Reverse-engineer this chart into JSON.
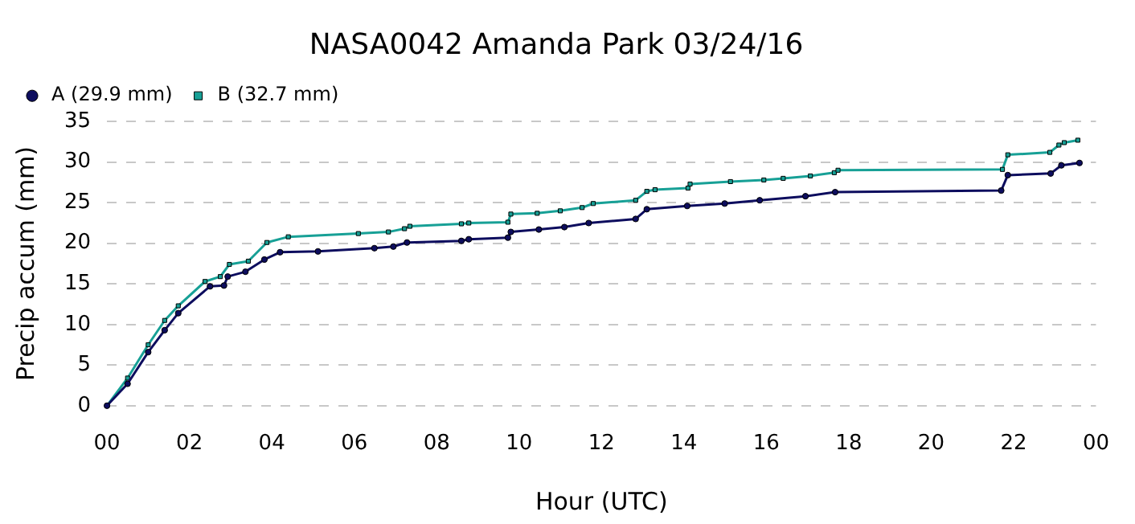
{
  "chart_data": {
    "type": "line",
    "title": "NASA0042 Amanda Park 03/24/16",
    "xlabel": "Hour (UTC)",
    "ylabel": "Precip accum (mm)",
    "xlim": [
      0,
      24
    ],
    "xticks": [
      {
        "value": 0,
        "label": "00"
      },
      {
        "value": 2,
        "label": "02"
      },
      {
        "value": 4,
        "label": "04"
      },
      {
        "value": 6,
        "label": "06"
      },
      {
        "value": 8,
        "label": "08"
      },
      {
        "value": 10,
        "label": "10"
      },
      {
        "value": 12,
        "label": "12"
      },
      {
        "value": 14,
        "label": "14"
      },
      {
        "value": 16,
        "label": "16"
      },
      {
        "value": 18,
        "label": "18"
      },
      {
        "value": 20,
        "label": "20"
      },
      {
        "value": 22,
        "label": "22"
      },
      {
        "value": 24,
        "label": "00"
      }
    ],
    "ylim": [
      0,
      35
    ],
    "yticks": [
      0,
      5,
      10,
      15,
      20,
      25,
      30,
      35
    ],
    "grid": "y",
    "legend": "top left",
    "marker": "circle",
    "line_style": "solid",
    "series": [
      {
        "name": "A (29.9 mm)",
        "color": "#0d0d5e",
        "x": [
          0,
          0.5,
          1,
          1.4,
          1.73,
          2.5,
          2.84,
          2.93,
          3.36,
          3.82,
          4.2,
          5.12,
          6.49,
          6.95,
          7.28,
          8.6,
          8.78,
          9.73,
          9.8,
          10.48,
          11.1,
          11.69,
          12.83,
          13.1,
          14.08,
          14.99,
          15.84,
          16.95,
          17.67,
          21.7,
          21.86,
          22.9,
          23.16,
          23.6
        ],
        "values": [
          0,
          2.7,
          6.6,
          9.3,
          11.4,
          14.7,
          14.8,
          15.9,
          16.5,
          18.0,
          18.9,
          19.0,
          19.4,
          19.6,
          20.1,
          20.3,
          20.5,
          20.7,
          21.4,
          21.7,
          22.0,
          22.5,
          23.0,
          24.2,
          24.6,
          24.9,
          25.3,
          25.8,
          26.3,
          26.5,
          28.4,
          28.6,
          29.6,
          29.9
        ]
      },
      {
        "name": "B (32.7 mm)",
        "color": "#17a096",
        "marker": "square",
        "x": [
          0,
          0.5,
          1,
          1.4,
          1.73,
          2.38,
          2.75,
          2.97,
          3.43,
          3.88,
          4.4,
          6.1,
          6.83,
          7.22,
          7.35,
          8.6,
          8.78,
          9.73,
          9.8,
          10.44,
          11.0,
          11.53,
          11.8,
          12.83,
          13.1,
          13.3,
          14.1,
          14.15,
          15.13,
          15.94,
          16.41,
          17.07,
          17.65,
          17.74,
          21.73,
          21.86,
          22.88,
          23.1,
          23.23,
          23.56
        ],
        "values": [
          0,
          3.4,
          7.5,
          10.5,
          12.3,
          15.3,
          15.9,
          17.4,
          17.8,
          20.1,
          20.8,
          21.2,
          21.4,
          21.8,
          22.1,
          22.4,
          22.5,
          22.6,
          23.6,
          23.7,
          24.0,
          24.4,
          24.9,
          25.3,
          26.4,
          26.6,
          26.8,
          27.3,
          27.6,
          27.8,
          28.0,
          28.3,
          28.7,
          29.0,
          29.1,
          30.9,
          31.2,
          32.1,
          32.4,
          32.7
        ]
      }
    ]
  }
}
